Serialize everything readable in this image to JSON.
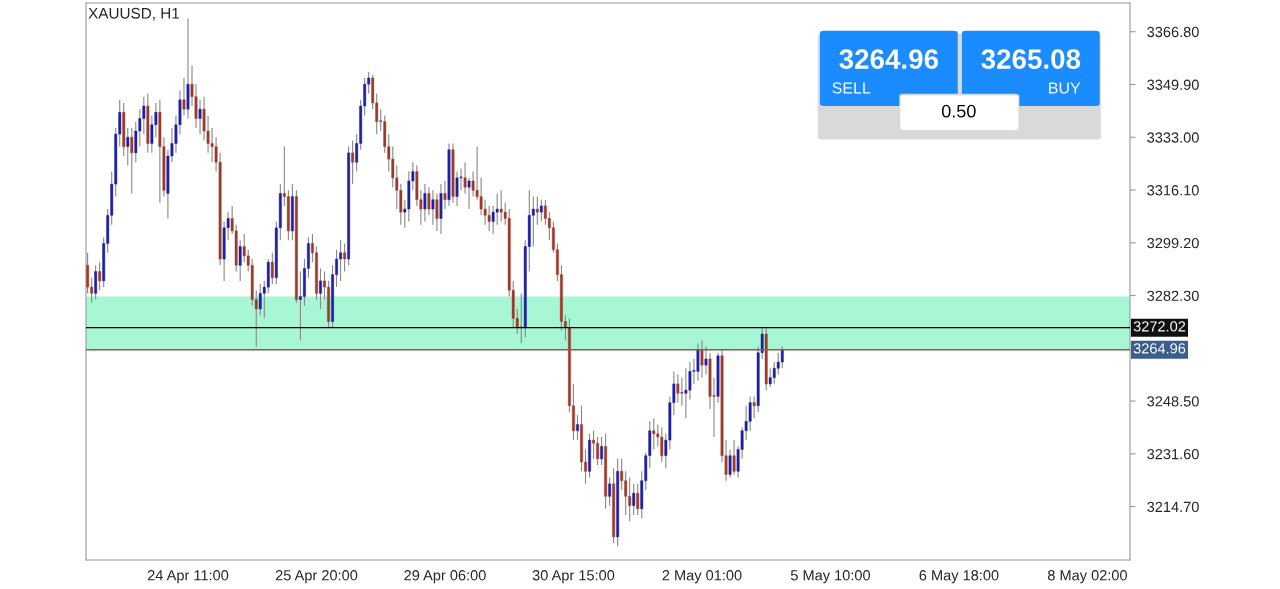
{
  "chart_data": {
    "type": "candlestick",
    "title": "XAUUSD, H1",
    "annotations": [
      "3264.96",
      "SELL",
      "3265.08",
      "BUY",
      "0.50"
    ],
    "categories": [
      null,
      null,
      null,
      null,
      null,
      null,
      null,
      null,
      null,
      null,
      null,
      null,
      null,
      null,
      null,
      null,
      null,
      null,
      null,
      null,
      null,
      null,
      null,
      null,
      null,
      "24 Apr 11:00",
      null,
      null,
      null,
      null,
      null,
      null,
      null,
      null,
      null,
      null,
      null,
      null,
      null,
      null,
      null,
      null,
      null,
      null,
      null,
      null,
      null,
      null,
      null,
      null,
      null,
      null,
      null,
      null,
      null,
      null,
      null,
      "25 Apr 20:00",
      null,
      null,
      null,
      null,
      null,
      null,
      null,
      null,
      null,
      null,
      null,
      null,
      null,
      null,
      null,
      null,
      null,
      null,
      null,
      null,
      null,
      null,
      null,
      null,
      null,
      null,
      null,
      null,
      null,
      null,
      null,
      "29 Apr 06:00",
      null,
      null,
      null,
      null,
      null,
      null,
      null,
      null,
      null,
      null,
      null,
      null,
      null,
      null,
      null,
      null,
      null,
      null,
      null,
      null,
      null,
      null,
      null,
      null,
      null,
      null,
      null,
      null,
      null,
      null,
      null,
      "30 Apr 15:00",
      null,
      null,
      null,
      null,
      null,
      null,
      null,
      null,
      null,
      null,
      null,
      null,
      null,
      null,
      null,
      null,
      null,
      null,
      null,
      null,
      null,
      null,
      null,
      null,
      null,
      null,
      null,
      null,
      null,
      null,
      null,
      "2 May 01:00",
      null,
      null,
      null,
      null,
      null,
      null,
      null,
      null,
      null,
      null,
      null,
      null,
      null,
      null,
      null,
      null,
      null,
      null,
      null,
      null,
      null,
      null,
      null,
      null,
      null,
      null,
      null,
      null,
      null,
      null,
      null,
      "5 May 10:00",
      null,
      null,
      null,
      null,
      null,
      null,
      null,
      null,
      null,
      null,
      null,
      null,
      null,
      null,
      null,
      null,
      null,
      null,
      null,
      null,
      null,
      null,
      null,
      null,
      null,
      null,
      null,
      null,
      null,
      null,
      null,
      "6 May 18:00",
      null,
      null,
      null,
      null,
      null,
      null,
      null,
      null,
      null,
      null,
      null,
      null,
      null,
      null,
      null,
      null,
      null,
      null,
      null,
      null,
      null,
      null,
      null,
      null,
      null,
      null,
      null,
      null,
      null,
      null,
      null,
      "8 May 02:00",
      null,
      null,
      null,
      null,
      null,
      null,
      null,
      null,
      null,
      null
    ],
    "ohlc": [
      [
        3292,
        3296,
        3283,
        3285
      ],
      [
        3285,
        3288,
        3280,
        3283
      ],
      [
        3283,
        3292,
        3281,
        3290
      ],
      [
        3290,
        3293,
        3284,
        3287
      ],
      [
        3287,
        3301,
        3285,
        3299
      ],
      [
        3299,
        3310,
        3296,
        3308
      ],
      [
        3308,
        3322,
        3305,
        3318
      ],
      [
        3318,
        3336,
        3314,
        3334
      ],
      [
        3334,
        3345,
        3330,
        3341
      ],
      [
        3341,
        3344,
        3327,
        3330
      ],
      [
        3330,
        3336,
        3324,
        3333
      ],
      [
        3333,
        3336,
        3315,
        3328
      ],
      [
        3328,
        3338,
        3325,
        3335
      ],
      [
        3335,
        3342,
        3330,
        3339
      ],
      [
        3339,
        3346,
        3334,
        3343
      ],
      [
        3343,
        3347,
        3328,
        3331
      ],
      [
        3331,
        3340,
        3328,
        3337
      ],
      [
        3337,
        3344,
        3333,
        3341
      ],
      [
        3341,
        3345,
        3312,
        3330
      ],
      [
        3330,
        3333,
        3314,
        3316
      ],
      [
        3315,
        3329,
        3307,
        3327
      ],
      [
        3327,
        3336,
        3325,
        3331
      ],
      [
        3331,
        3340,
        3328,
        3337
      ],
      [
        3337,
        3348,
        3334,
        3345
      ],
      [
        3345,
        3352,
        3340,
        3342
      ],
      [
        3342,
        3371,
        3339,
        3350
      ],
      [
        3350,
        3356,
        3343,
        3346
      ],
      [
        3346,
        3350,
        3336,
        3339
      ],
      [
        3339,
        3345,
        3334,
        3342
      ],
      [
        3342,
        3346,
        3332,
        3335
      ],
      [
        3335,
        3340,
        3328,
        3331
      ],
      [
        3331,
        3336,
        3325,
        3330
      ],
      [
        3330,
        3333,
        3322,
        3325
      ],
      [
        3325,
        3328,
        3292,
        3294
      ],
      [
        3294,
        3306,
        3287,
        3304
      ],
      [
        3304,
        3309,
        3300,
        3307
      ],
      [
        3307,
        3311,
        3302,
        3303
      ],
      [
        3303,
        3305,
        3290,
        3292
      ],
      [
        3292,
        3300,
        3287,
        3298
      ],
      [
        3298,
        3302,
        3293,
        3295
      ],
      [
        3295,
        3297,
        3290,
        3292
      ],
      [
        3292,
        3294,
        3279,
        3281
      ],
      [
        3281,
        3284,
        3266,
        3278
      ],
      [
        3278,
        3286,
        3276,
        3283
      ],
      [
        3283,
        3287,
        3275,
        3285
      ],
      [
        3285,
        3294,
        3283,
        3293
      ],
      [
        3293,
        3296,
        3286,
        3288
      ],
      [
        3288,
        3306,
        3286,
        3304
      ],
      [
        3304,
        3318,
        3300,
        3315
      ],
      [
        3315,
        3330,
        3311,
        3314
      ],
      [
        3314,
        3316,
        3300,
        3303
      ],
      [
        3303,
        3318,
        3300,
        3314
      ],
      [
        3314,
        3316,
        3280,
        3281
      ],
      [
        3281,
        3290,
        3268,
        3282
      ],
      [
        3282,
        3294,
        3279,
        3291
      ],
      [
        3291,
        3301,
        3288,
        3299
      ],
      [
        3299,
        3302,
        3293,
        3296
      ],
      [
        3296,
        3298,
        3281,
        3283
      ],
      [
        3283,
        3291,
        3278,
        3287
      ],
      [
        3287,
        3290,
        3281,
        3285
      ],
      [
        3285,
        3287,
        3272,
        3274
      ],
      [
        3274,
        3292,
        3272,
        3289
      ],
      [
        3289,
        3297,
        3285,
        3294
      ],
      [
        3294,
        3300,
        3287,
        3296
      ],
      [
        3296,
        3299,
        3290,
        3294
      ],
      [
        3294,
        3330,
        3292,
        3328
      ],
      [
        3328,
        3332,
        3318,
        3325
      ],
      [
        3325,
        3334,
        3322,
        3331
      ],
      [
        3331,
        3345,
        3329,
        3343
      ],
      [
        3343,
        3352,
        3340,
        3350
      ],
      [
        3350,
        3354,
        3347,
        3352
      ],
      [
        3352,
        3353,
        3342,
        3344
      ],
      [
        3344,
        3347,
        3334,
        3338
      ],
      [
        3338,
        3342,
        3335,
        3338
      ],
      [
        3338,
        3340,
        3328,
        3330
      ],
      [
        3330,
        3334,
        3322,
        3326
      ],
      [
        3326,
        3330,
        3317,
        3320
      ],
      [
        3320,
        3324,
        3310,
        3316
      ],
      [
        3316,
        3318,
        3305,
        3309
      ],
      [
        3309,
        3313,
        3304,
        3310
      ],
      [
        3310,
        3322,
        3306,
        3319
      ],
      [
        3319,
        3325,
        3316,
        3322
      ],
      [
        3322,
        3324,
        3311,
        3313
      ],
      [
        3313,
        3316,
        3305,
        3310
      ],
      [
        3310,
        3318,
        3306,
        3315
      ],
      [
        3315,
        3317,
        3308,
        3310
      ],
      [
        3310,
        3316,
        3305,
        3313
      ],
      [
        3313,
        3315,
        3303,
        3307
      ],
      [
        3307,
        3318,
        3302,
        3315
      ],
      [
        3315,
        3319,
        3310,
        3313
      ],
      [
        3313,
        3331,
        3311,
        3329
      ],
      [
        3329,
        3331,
        3312,
        3314
      ],
      [
        3314,
        3322,
        3311,
        3320
      ],
      [
        3320,
        3323,
        3316,
        3320
      ],
      [
        3320,
        3325,
        3315,
        3317
      ],
      [
        3317,
        3320,
        3310,
        3319
      ],
      [
        3319,
        3322,
        3314,
        3316
      ],
      [
        3316,
        3330,
        3313,
        3314
      ],
      [
        3314,
        3320,
        3308,
        3310
      ],
      [
        3310,
        3313,
        3305,
        3308
      ],
      [
        3308,
        3311,
        3303,
        3306
      ],
      [
        3306,
        3311,
        3302,
        3309
      ],
      [
        3309,
        3315,
        3305,
        3310
      ],
      [
        3310,
        3316,
        3306,
        3309
      ],
      [
        3309,
        3312,
        3305,
        3307
      ],
      [
        3307,
        3310,
        3282,
        3284
      ],
      [
        3284,
        3287,
        3272,
        3275
      ],
      [
        3275,
        3278,
        3270,
        3272
      ],
      [
        3272,
        3283,
        3267,
        3272
      ],
      [
        3272,
        3300,
        3269,
        3298
      ],
      [
        3298,
        3316,
        3290,
        3308
      ],
      [
        3308,
        3314,
        3298,
        3310
      ],
      [
        3310,
        3314,
        3305,
        3309
      ],
      [
        3309,
        3313,
        3306,
        3311
      ],
      [
        3311,
        3313,
        3305,
        3307
      ],
      [
        3307,
        3309,
        3300,
        3304
      ],
      [
        3304,
        3306,
        3296,
        3297
      ],
      [
        3297,
        3299,
        3287,
        3289
      ],
      [
        3289,
        3292,
        3271,
        3274
      ],
      [
        3274,
        3276,
        3268,
        3272
      ],
      [
        3272,
        3275,
        3245,
        3247
      ],
      [
        3247,
        3254,
        3236,
        3239
      ],
      [
        3239,
        3244,
        3236,
        3241
      ],
      [
        3241,
        3247,
        3226,
        3229
      ],
      [
        3229,
        3233,
        3222,
        3226
      ],
      [
        3226,
        3238,
        3224,
        3236
      ],
      [
        3236,
        3239,
        3230,
        3235
      ],
      [
        3235,
        3237,
        3228,
        3230
      ],
      [
        3230,
        3237,
        3228,
        3234
      ],
      [
        3234,
        3238,
        3214,
        3218
      ],
      [
        3218,
        3224,
        3215,
        3222
      ],
      [
        3222,
        3227,
        3203,
        3205
      ],
      [
        3205,
        3230,
        3202,
        3226
      ],
      [
        3226,
        3230,
        3220,
        3223
      ],
      [
        3223,
        3226,
        3212,
        3218
      ],
      [
        3218,
        3224,
        3210,
        3215
      ],
      [
        3215,
        3222,
        3212,
        3219
      ],
      [
        3219,
        3222,
        3212,
        3214
      ],
      [
        3214,
        3226,
        3211,
        3223
      ],
      [
        3223,
        3232,
        3220,
        3231
      ],
      [
        3231,
        3242,
        3227,
        3239
      ],
      [
        3239,
        3243,
        3233,
        3238
      ],
      [
        3238,
        3241,
        3234,
        3237
      ],
      [
        3237,
        3240,
        3229,
        3231
      ],
      [
        3231,
        3238,
        3227,
        3236
      ],
      [
        3236,
        3250,
        3233,
        3248
      ],
      [
        3248,
        3258,
        3244,
        3254
      ],
      [
        3254,
        3257,
        3248,
        3251
      ],
      [
        3251,
        3256,
        3247,
        3251
      ],
      [
        3251,
        3259,
        3243,
        3252
      ],
      [
        3252,
        3261,
        3249,
        3258
      ],
      [
        3258,
        3262,
        3254,
        3258
      ],
      [
        3258,
        3267,
        3255,
        3265
      ],
      [
        3265,
        3268,
        3256,
        3260
      ],
      [
        3260,
        3266,
        3257,
        3262
      ],
      [
        3262,
        3264,
        3246,
        3250
      ],
      [
        3250,
        3256,
        3237,
        3250
      ],
      [
        3250,
        3264,
        3248,
        3263
      ],
      [
        3263,
        3265,
        3229,
        3231
      ],
      [
        3231,
        3236,
        3223,
        3225
      ],
      [
        3225,
        3233,
        3224,
        3231
      ],
      [
        3231,
        3236,
        3225,
        3226
      ],
      [
        3226,
        3234,
        3224,
        3233
      ],
      [
        3233,
        3240,
        3230,
        3239
      ],
      [
        3239,
        3247,
        3236,
        3242
      ],
      [
        3242,
        3250,
        3239,
        3248
      ],
      [
        3248,
        3250,
        3243,
        3247
      ],
      [
        3247,
        3266,
        3245,
        3264
      ],
      [
        3264,
        3272,
        3262,
        3270
      ],
      [
        3270,
        3272,
        3252,
        3254
      ],
      [
        3254,
        3259,
        3253,
        3256
      ],
      [
        3256,
        3261,
        3254,
        3259
      ],
      [
        3259,
        3264,
        3257,
        3261
      ],
      [
        3261,
        3266,
        3259,
        3265
      ],
      null,
      null,
      null,
      null,
      null,
      null,
      null,
      null,
      null,
      null,
      null,
      null,
      null,
      null,
      null,
      null,
      null,
      null,
      null,
      null,
      null,
      null,
      null,
      null,
      null,
      null,
      null,
      null,
      null,
      null,
      null,
      null,
      null,
      null,
      null,
      null,
      null,
      null,
      null,
      null,
      null,
      null,
      null,
      null,
      null,
      null,
      null,
      null,
      null,
      null,
      null,
      null,
      null,
      null,
      null,
      null,
      null,
      null,
      null,
      null,
      null,
      null,
      null,
      null,
      null,
      null,
      null,
      null,
      null,
      null,
      null,
      null,
      null,
      null,
      null,
      null,
      null,
      null,
      null,
      null,
      null,
      null,
      null,
      null,
      null,
      null
    ],
    "colors": [
      "#9c3b2b",
      "#9c3b2b",
      "#1f1fa6",
      "#9c3b2b",
      "#1f1fa6",
      "#1f1fa6",
      "#1f1fa6",
      "#1f1fa6",
      "#1f1fa6",
      "#9c3b2b",
      "#1f1fa6",
      "#9c3b2b",
      "#1f1fa6",
      "#1f1fa6",
      "#1f1fa6",
      "#9c3b2b",
      "#1f1fa6",
      "#1f1fa6",
      "#9c3b2b",
      "#9c3b2b",
      "#1f1fa6",
      "#1f1fa6",
      "#1f1fa6",
      "#1f1fa6",
      "#9c3b2b",
      "#1f1fa6",
      "#9c3b2b",
      "#9c3b2b",
      "#1f1fa6",
      "#9c3b2b",
      "#9c3b2b",
      "#9c3b2b",
      "#9c3b2b",
      "#9c3b2b",
      "#1f1fa6",
      "#1f1fa6",
      "#9c3b2b",
      "#9c3b2b",
      "#1f1fa6",
      "#9c3b2b",
      "#9c3b2b",
      "#9c3b2b",
      "#9c3b2b",
      "#1f1fa6",
      "#1f1fa6",
      "#1f1fa6",
      "#9c3b2b",
      "#1f1fa6",
      "#1f1fa6",
      "#9c3b2b",
      "#9c3b2b",
      "#1f1fa6",
      "#9c3b2b",
      "#1f1fa6",
      "#1f1fa6",
      "#1f1fa6",
      "#9c3b2b",
      "#9c3b2b",
      "#1f1fa6",
      "#9c3b2b",
      "#9c3b2b",
      "#1f1fa6",
      "#1f1fa6",
      "#1f1fa6",
      "#9c3b2b",
      "#1f1fa6",
      "#9c3b2b",
      "#1f1fa6",
      "#1f1fa6",
      "#1f1fa6",
      "#1f1fa6",
      "#9c3b2b",
      "#9c3b2b",
      "#9c3b2b",
      "#9c3b2b",
      "#9c3b2b",
      "#9c3b2b",
      "#9c3b2b",
      "#9c3b2b",
      "#1f1fa6",
      "#1f1fa6",
      "#1f1fa6",
      "#9c3b2b",
      "#9c3b2b",
      "#1f1fa6",
      "#9c3b2b",
      "#1f1fa6",
      "#9c3b2b",
      "#1f1fa6",
      "#9c3b2b",
      "#1f1fa6",
      "#9c3b2b",
      "#1f1fa6",
      "#1f1fa6",
      "#9c3b2b",
      "#1f1fa6",
      "#9c3b2b",
      "#9c3b2b",
      "#9c3b2b",
      "#9c3b2b",
      "#9c3b2b",
      "#1f1fa6",
      "#1f1fa6",
      "#9c3b2b",
      "#9c3b2b",
      "#9c3b2b",
      "#9c3b2b",
      "#9c3b2b",
      "#9c3b2b",
      "#1f1fa6",
      "#1f1fa6",
      "#1f1fa6",
      "#9c3b2b",
      "#1f1fa6",
      "#9c3b2b",
      "#9c3b2b",
      "#9c3b2b",
      "#9c3b2b",
      "#9c3b2b",
      "#9c3b2b",
      "#9c3b2b",
      "#9c3b2b",
      "#1f1fa6",
      "#9c3b2b",
      "#9c3b2b",
      "#1f1fa6",
      "#9c3b2b",
      "#9c3b2b",
      "#1f1fa6",
      "#9c3b2b",
      "#1f1fa6",
      "#9c3b2b",
      "#1f1fa6",
      "#9c3b2b",
      "#9c3b2b",
      "#9c3b2b",
      "#1f1fa6",
      "#9c3b2b",
      "#1f1fa6",
      "#1f1fa6",
      "#1f1fa6",
      "#9c3b2b",
      "#9c3b2b",
      "#9c3b2b",
      "#1f1fa6",
      "#1f1fa6",
      "#1f1fa6",
      "#9c3b2b",
      "#9c3b2b",
      "#1f1fa6",
      "#1f1fa6",
      "#1f1fa6",
      "#1f1fa6",
      "#9c3b2b",
      "#1f1fa6",
      "#9c3b2b",
      "#9c3b2b",
      "#1f1fa6",
      "#9c3b2b",
      "#9c3b2b",
      "#1f1fa6",
      "#9c3b2b",
      "#1f1fa6",
      "#1f1fa6",
      "#1f1fa6",
      "#1f1fa6",
      "#9c3b2b",
      "#1f1fa6",
      "#1f1fa6",
      "#9c3b2b",
      "#1f1fa6",
      "#1f1fa6",
      "#1f1fa6",
      "#1f1fa6",
      null,
      null,
      null,
      null,
      null,
      null,
      null,
      null,
      null,
      null,
      null,
      null,
      null,
      null,
      null,
      null,
      null,
      null,
      null,
      null,
      null,
      null,
      null,
      null,
      null,
      null,
      null,
      null,
      null,
      null,
      null,
      null,
      null,
      null,
      null,
      null,
      null,
      null,
      null,
      null,
      null,
      null,
      null,
      null,
      null,
      null,
      null,
      null,
      null,
      null,
      null,
      null,
      null,
      null,
      null,
      null,
      null,
      null,
      null,
      null,
      null,
      null,
      null,
      null,
      null,
      null,
      null,
      null,
      null,
      null,
      null,
      null,
      null,
      null,
      null,
      null,
      null,
      null,
      null,
      null,
      null,
      null,
      null,
      null,
      null,
      null
    ],
    "ylim": [
      3197.6,
      3376.0
    ],
    "yticks": [
      {
        "value": 3214.7,
        "label": "3214.70"
      },
      {
        "value": 3231.6,
        "label": "3231.60"
      },
      {
        "value": 3248.5,
        "label": "3248.50"
      },
      {
        "value": 3282.3,
        "label": "3282.30"
      },
      {
        "value": 3299.2,
        "label": "3299.20"
      },
      {
        "value": 3316.1,
        "label": "3316.10"
      },
      {
        "value": 3333.0,
        "label": "3333.00"
      },
      {
        "value": 3349.9,
        "label": "3349.90"
      },
      {
        "value": 3366.8,
        "label": "3366.80"
      }
    ],
    "ref_lines": [
      {
        "axis": "y",
        "value": 3272.02,
        "label": "3272.02",
        "color": "#000000"
      },
      {
        "axis": "y",
        "value": 3264.96,
        "label": "3264.96",
        "color": "#a0524a"
      }
    ],
    "bands": [
      {
        "axis": "y",
        "from": 3265,
        "to": 3282,
        "color": "#a8f7d4"
      }
    ],
    "grid": false,
    "legend": false
  }
}
